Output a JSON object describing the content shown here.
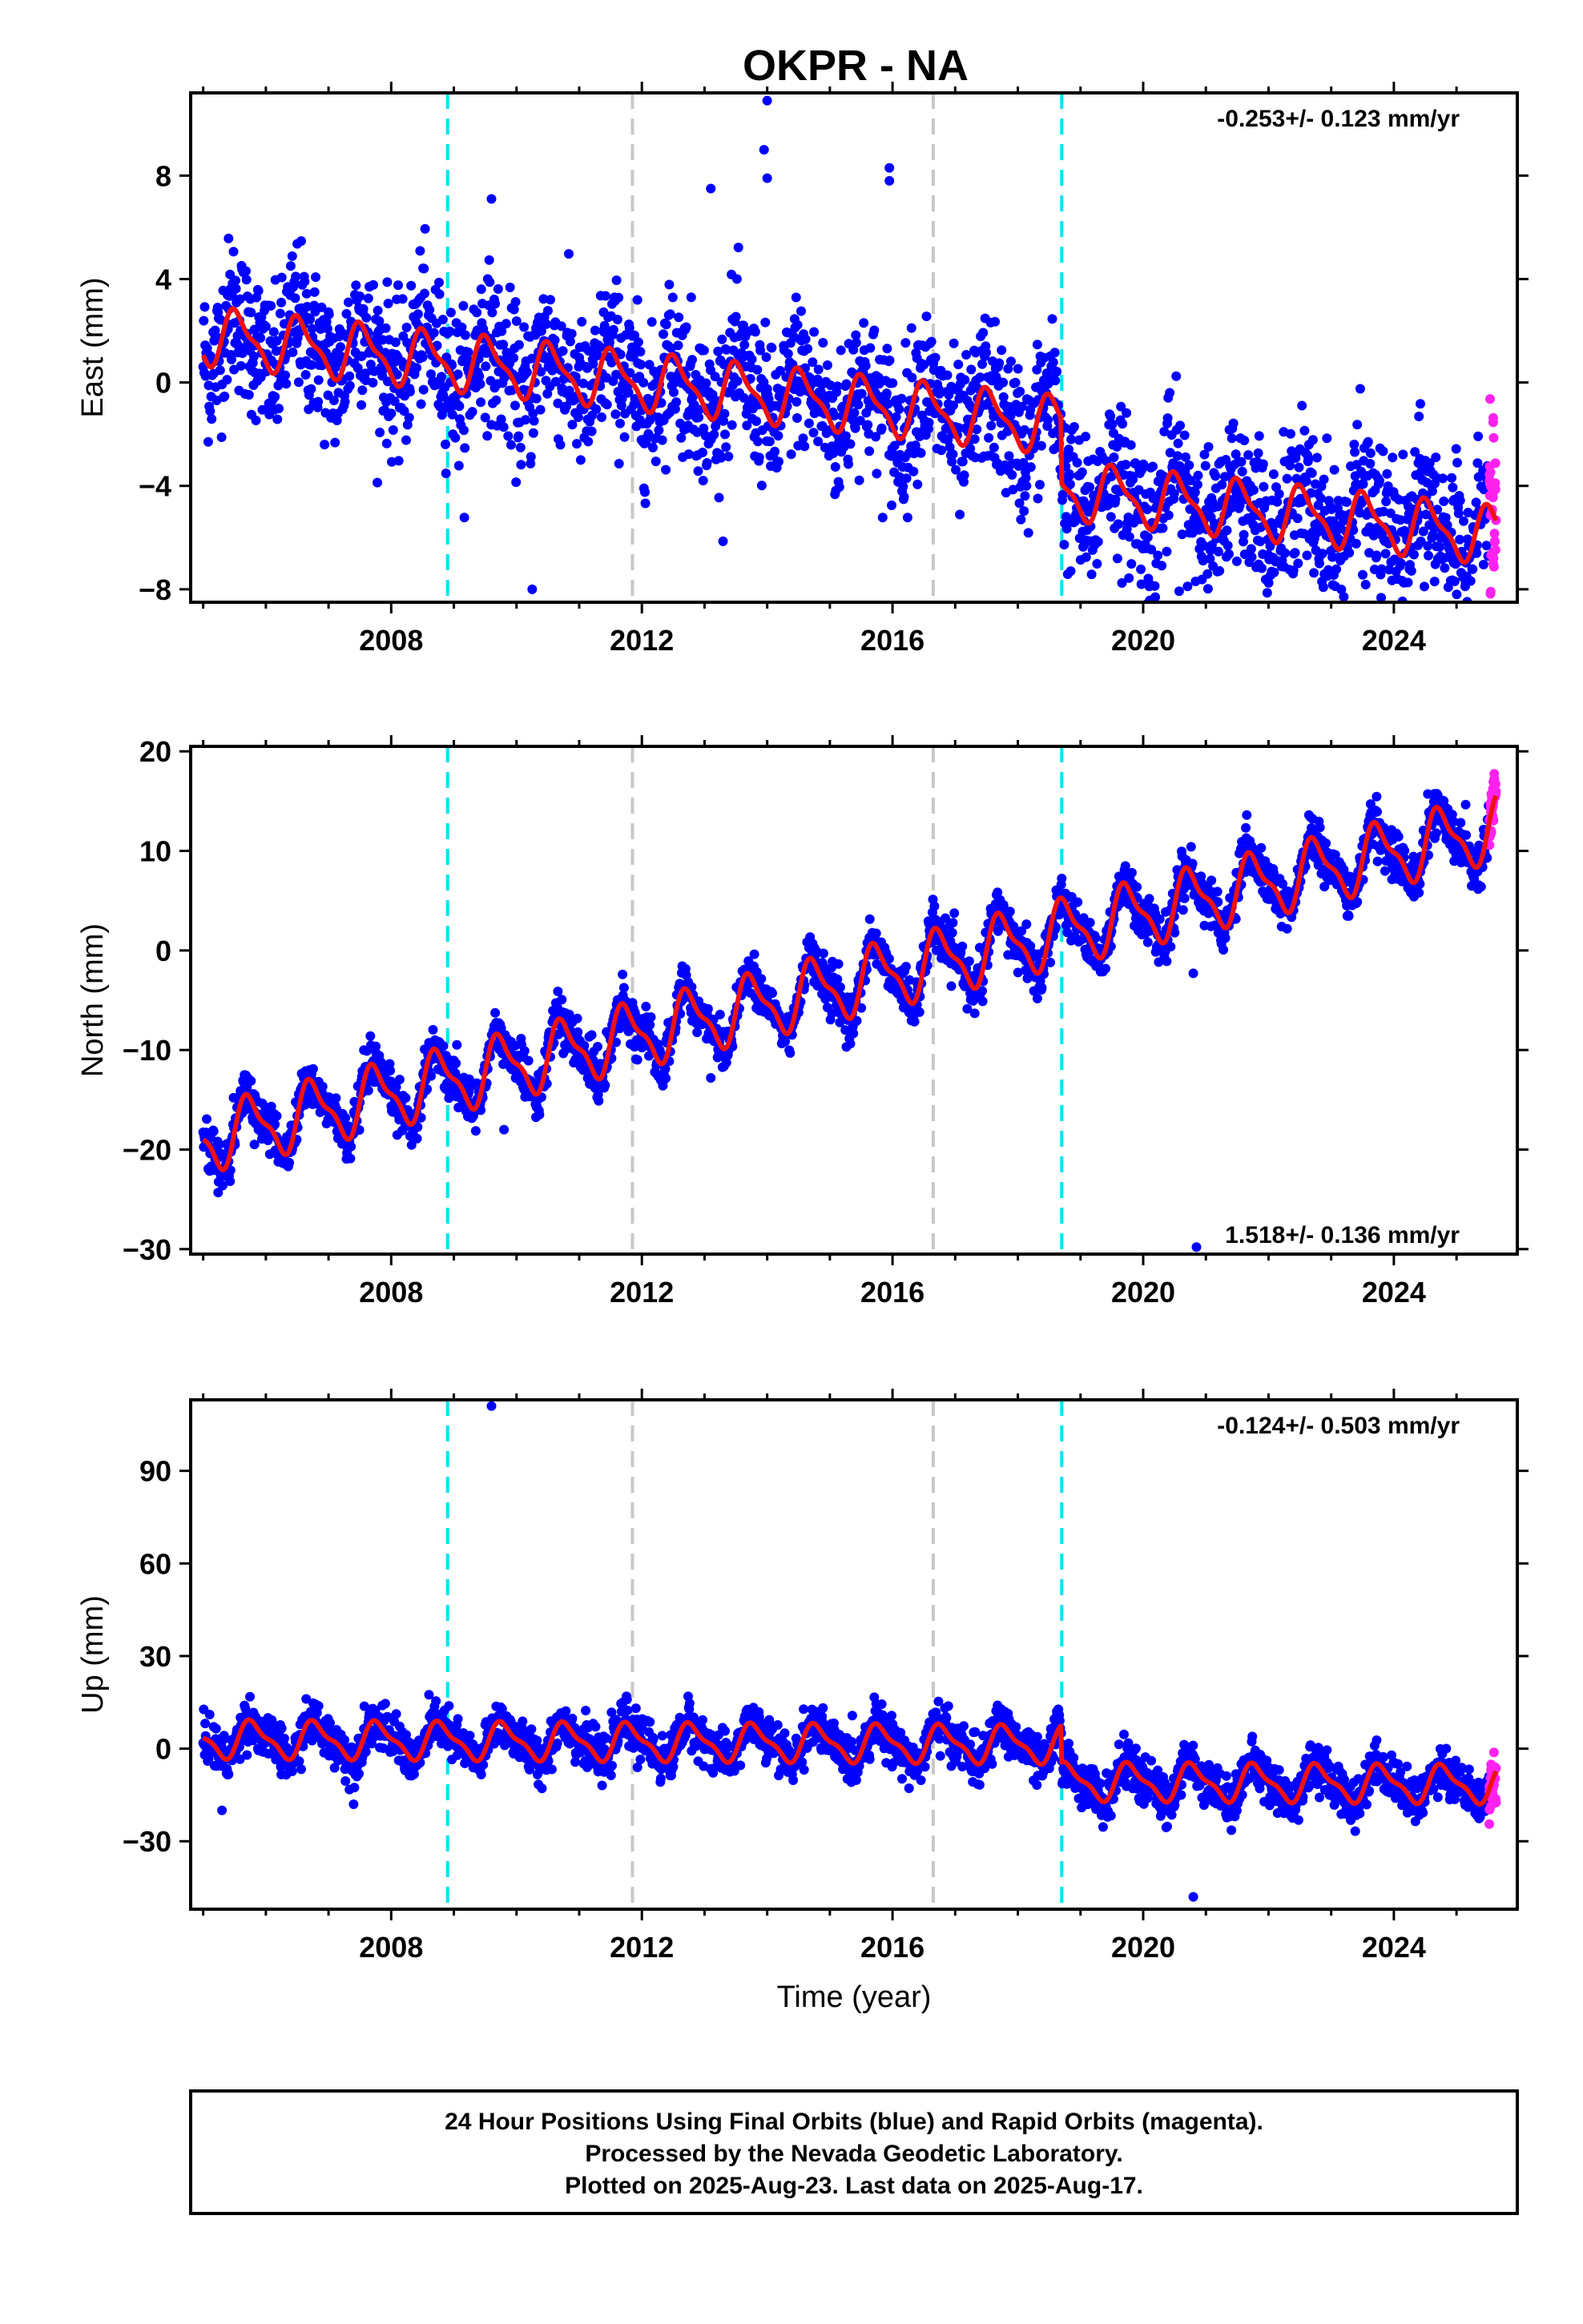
{
  "title": "OKPR - NA",
  "xlabel": "Time (year)",
  "footer_lines": [
    "24 Hour Positions Using Final Orbits (blue) and Rapid Orbits (magenta).",
    "Processed by the Nevada Geodetic Laboratory.",
    "Plotted on 2025-Aug-23. Last data on 2025-Aug-17."
  ],
  "colors": {
    "final_orbits": "#0000ff",
    "rapid_orbits": "#ff22ee",
    "model": "#ee1111",
    "equipment_change": "#00e5ee",
    "other_event": "#c8c8c8"
  },
  "chart_data": [
    {
      "type": "scatter",
      "ylabel": "East (mm)",
      "rate_text": "-0.253+/- 0.123 mm/yr",
      "rate_position": "top-right",
      "xlim": [
        2004.8,
        2025.97
      ],
      "ylim": [
        -8.5,
        11.2
      ],
      "xticks": [
        2008,
        2012,
        2016,
        2020,
        2024
      ],
      "xtick_labels": [
        "2008",
        "2012",
        "2016",
        "2020",
        "2024"
      ],
      "yticks": [
        -8,
        -4,
        0,
        4,
        8
      ],
      "ytick_labels": [
        "−8",
        "−4",
        "0",
        "4",
        "8"
      ],
      "x_range": [
        2005.0,
        2025.63
      ],
      "rapid_start": 2025.52,
      "model": {
        "offset": 1.8,
        "rate": -0.253,
        "amp": 1.0,
        "phase": 0.3,
        "steps": [
          {
            "x": 2018.7,
            "dy": -2.5
          }
        ]
      },
      "scatter": 3.2,
      "events_cyan": [
        2008.9,
        2018.7
      ],
      "events_gray": [
        2011.85,
        2016.65
      ],
      "outliers": [
        [
          2014.0,
          10.9
        ],
        [
          2013.95,
          9.0
        ],
        [
          2014.0,
          7.9
        ],
        [
          2015.95,
          8.3
        ],
        [
          2015.95,
          7.8
        ],
        [
          2009.6,
          7.1
        ],
        [
          2010.25,
          -8.0
        ],
        [
          2013.1,
          7.5
        ],
        [
          2024.65,
          -7.7
        ]
      ]
    },
    {
      "type": "scatter",
      "ylabel": "North (mm)",
      "rate_text": "1.518+/- 0.136 mm/yr",
      "rate_position": "bottom-right",
      "xlim": [
        2004.8,
        2025.97
      ],
      "ylim": [
        -30.5,
        20.5
      ],
      "xticks": [
        2008,
        2012,
        2016,
        2020,
        2024
      ],
      "xtick_labels": [
        "2008",
        "2012",
        "2016",
        "2020",
        "2024"
      ],
      "yticks": [
        -30,
        -20,
        -10,
        0,
        10,
        20
      ],
      "ytick_labels": [
        "−30",
        "−20",
        "−10",
        "0",
        "10",
        "20"
      ],
      "x_range": [
        2005.0,
        2025.63
      ],
      "rapid_start": 2025.52,
      "model": {
        "offset": -19.0,
        "rate": 1.518,
        "amp": 3.0,
        "phase": 0.5,
        "steps": []
      },
      "scatter": 2.6,
      "events_cyan": [
        2008.9,
        2018.7
      ],
      "events_gray": [
        2011.85,
        2016.65
      ],
      "outliers": [
        [
          2020.8,
          -2.3
        ],
        [
          2013.1,
          -12.8
        ],
        [
          2020.85,
          -29.8
        ],
        [
          2009.8,
          -18.0
        ]
      ]
    },
    {
      "type": "scatter",
      "ylabel": "Up (mm)",
      "rate_text": "-0.124+/- 0.503 mm/yr",
      "rate_position": "top-right",
      "xlim": [
        2004.8,
        2025.97
      ],
      "ylim": [
        -52,
        113
      ],
      "xticks": [
        2008,
        2012,
        2016,
        2020,
        2024
      ],
      "xtick_labels": [
        "2008",
        "2012",
        "2016",
        "2020",
        "2024"
      ],
      "yticks": [
        -30,
        0,
        30,
        60,
        90
      ],
      "ytick_labels": [
        "−30",
        "0",
        "30",
        "60",
        "90"
      ],
      "x_range": [
        2005.0,
        2025.63
      ],
      "rapid_start": 2025.52,
      "model": {
        "offset": 3.0,
        "rate": -0.124,
        "amp": 5.5,
        "phase": 0.55,
        "steps": [
          {
            "x": 2018.7,
            "dy": -12.0
          }
        ]
      },
      "scatter": 8.0,
      "events_cyan": [
        2008.9,
        2018.7
      ],
      "events_gray": [
        2011.85,
        2016.65
      ],
      "outliers": [
        [
          2009.6,
          111
        ],
        [
          2020.8,
          -48
        ],
        [
          2005.3,
          -20
        ],
        [
          2007.4,
          -18
        ]
      ]
    }
  ]
}
